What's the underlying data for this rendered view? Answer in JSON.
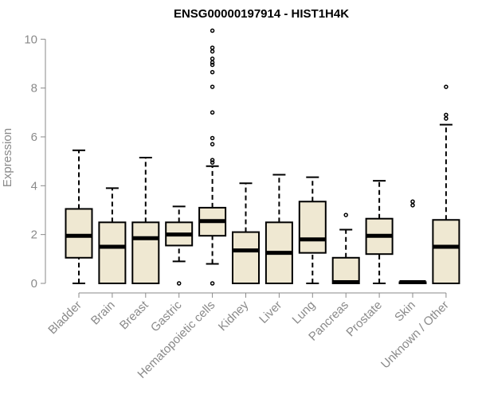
{
  "chart_data": {
    "type": "boxplot",
    "title": "ENSG00000197914 - HIST1H4K",
    "xlabel": "",
    "ylabel": "Expression",
    "ylim": [
      0,
      10.4
    ],
    "yticks": [
      0,
      2,
      4,
      6,
      8,
      10
    ],
    "grid": false,
    "legend": "none",
    "box_fill": "#efe8d2",
    "box_stroke": "#000000",
    "categories": [
      "Bladder",
      "Brain",
      "Breast",
      "Gastric",
      "Hematopoietic cells",
      "Kidney",
      "Liver",
      "Lung",
      "Pancreas",
      "Prostate",
      "Skin",
      "Unknown / Other"
    ],
    "boxes": [
      {
        "min": 0.0,
        "q1": 1.05,
        "median": 1.95,
        "q3": 3.05,
        "max": 5.45,
        "outliers": []
      },
      {
        "min": 0.0,
        "q1": 0.0,
        "median": 1.5,
        "q3": 2.5,
        "max": 3.9,
        "outliers": []
      },
      {
        "min": 0.0,
        "q1": 0.0,
        "median": 1.85,
        "q3": 2.5,
        "max": 5.15,
        "outliers": []
      },
      {
        "min": 0.9,
        "q1": 1.55,
        "median": 2.0,
        "q3": 2.5,
        "max": 3.15,
        "outliers": [
          0.0
        ]
      },
      {
        "min": 0.8,
        "q1": 1.95,
        "median": 2.55,
        "q3": 3.1,
        "max": 4.8,
        "outliers": [
          0.0,
          4.95,
          5.05,
          5.7,
          5.95,
          7.0,
          8.05,
          8.65,
          8.95,
          9.05,
          9.2,
          9.5,
          9.65,
          10.35
        ]
      },
      {
        "min": 0.0,
        "q1": 0.0,
        "median": 1.35,
        "q3": 2.1,
        "max": 4.1,
        "outliers": []
      },
      {
        "min": 0.0,
        "q1": 0.0,
        "median": 1.25,
        "q3": 2.5,
        "max": 4.45,
        "outliers": []
      },
      {
        "min": 0.0,
        "q1": 1.25,
        "median": 1.8,
        "q3": 3.35,
        "max": 4.35,
        "outliers": []
      },
      {
        "min": 0.0,
        "q1": 0.0,
        "median": 0.05,
        "q3": 1.05,
        "max": 2.2,
        "outliers": [
          2.8
        ]
      },
      {
        "min": 0.0,
        "q1": 1.2,
        "median": 1.95,
        "q3": 2.65,
        "max": 4.2,
        "outliers": []
      },
      {
        "min": 0.0,
        "q1": 0.0,
        "median": 0.05,
        "q3": 0.05,
        "max": 0.05,
        "outliers": [
          3.2,
          3.35
        ]
      },
      {
        "min": 0.0,
        "q1": 0.0,
        "median": 1.5,
        "q3": 2.6,
        "max": 6.5,
        "outliers": [
          6.75,
          6.9,
          8.05
        ]
      }
    ]
  }
}
